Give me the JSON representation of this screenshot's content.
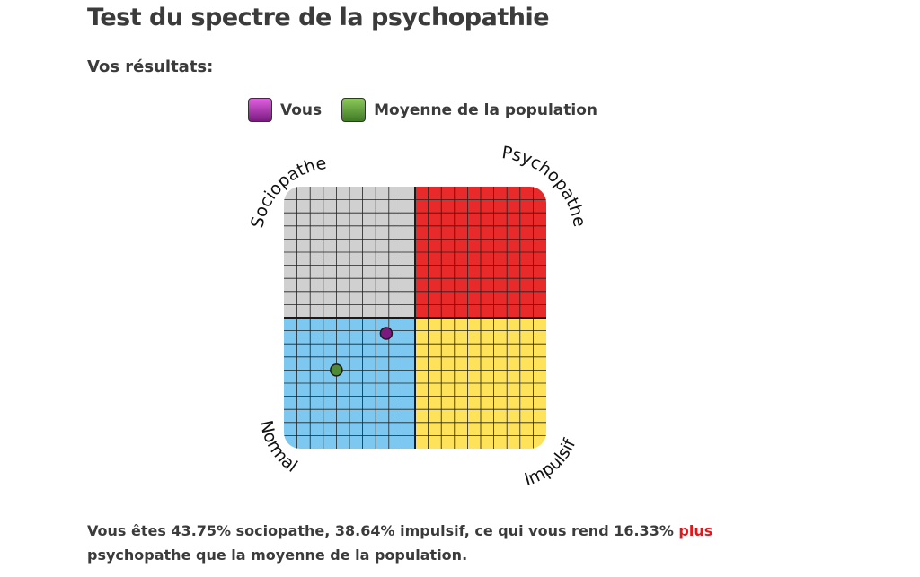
{
  "page": {
    "title": "Test du spectre de la psychopathie",
    "results_heading": "Vos résultats:"
  },
  "legend": {
    "you": {
      "label": "Vous",
      "color": "#7a1a80"
    },
    "average": {
      "label": "Moyenne de la population",
      "color": "#4f8a34"
    }
  },
  "chart_data": {
    "type": "scatter",
    "quadrants": {
      "top_left": {
        "label": "Sociopathe",
        "color": "#d0d0d0"
      },
      "top_right": {
        "label": "Psychopathe",
        "color": "#e82a2a"
      },
      "bottom_left": {
        "label": "Normal",
        "color": "#7cc8f0"
      },
      "bottom_right": {
        "label": "Impulsif",
        "color": "#fde25a"
      }
    },
    "x_axis": "impulsif",
    "y_axis": "sociopathe",
    "xlim": [
      0,
      1
    ],
    "ylim": [
      0,
      1
    ],
    "grid": true,
    "points": [
      {
        "series": "you",
        "x": 0.39,
        "y": 0.44,
        "color": "#7a1a80"
      },
      {
        "series": "average",
        "x": 0.2,
        "y": 0.3,
        "color": "#4f8a34"
      }
    ]
  },
  "summary": {
    "before": "Vous êtes 43.75% sociopathe, 38.64% impulsif, ce qui vous rend 16.33% ",
    "highlight": "plus",
    "after": " psychopathe que la moyenne de la population."
  }
}
